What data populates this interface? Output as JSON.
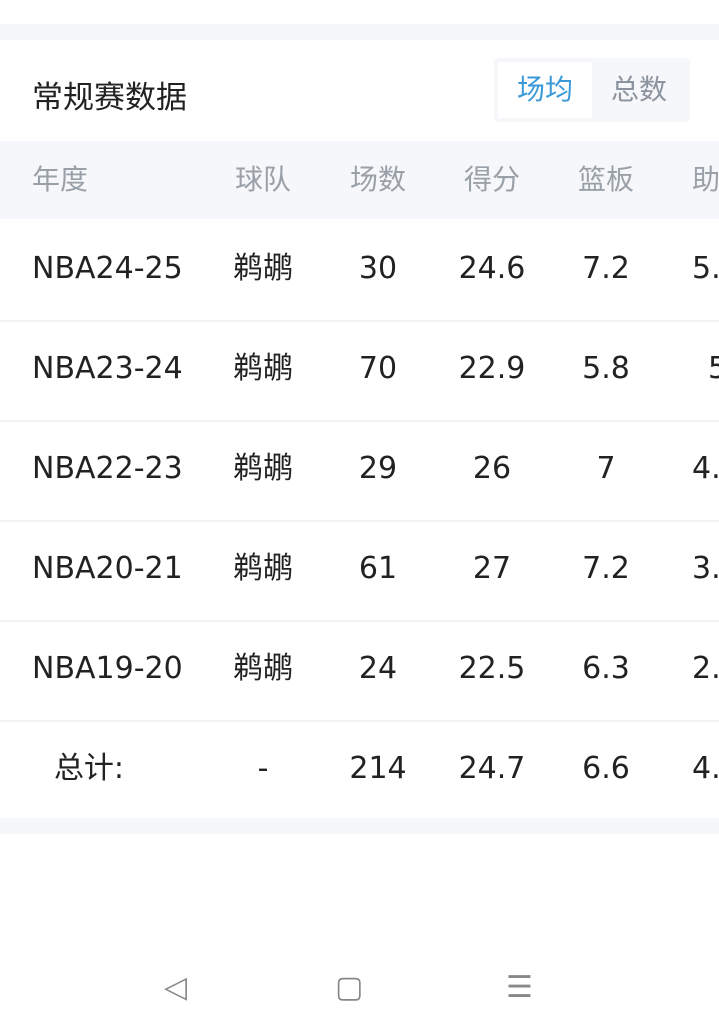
{
  "title": "常规赛数据",
  "toggle": {
    "per_game": "场均",
    "total": "总数",
    "active_color": "#3a9ad9"
  },
  "headers": [
    "年度",
    "球队",
    "场数",
    "得分",
    "篮板",
    "助"
  ],
  "rows": [
    [
      "NBA24-25",
      "鹈鹕",
      "30",
      "24.6",
      "7.2",
      "5."
    ],
    [
      "NBA23-24",
      "鹈鹕",
      "70",
      "22.9",
      "5.8",
      "5"
    ],
    [
      "NBA22-23",
      "鹈鹕",
      "29",
      "26",
      "7",
      "4."
    ],
    [
      "NBA20-21",
      "鹈鹕",
      "61",
      "27",
      "7.2",
      "3."
    ],
    [
      "NBA19-20",
      "鹈鹕",
      "24",
      "22.5",
      "6.3",
      "2."
    ]
  ],
  "total": [
    "总计:",
    "-",
    "214",
    "24.7",
    "6.6",
    "4."
  ],
  "nav": {
    "back": "◁",
    "home": "▢",
    "menu": "☰"
  }
}
